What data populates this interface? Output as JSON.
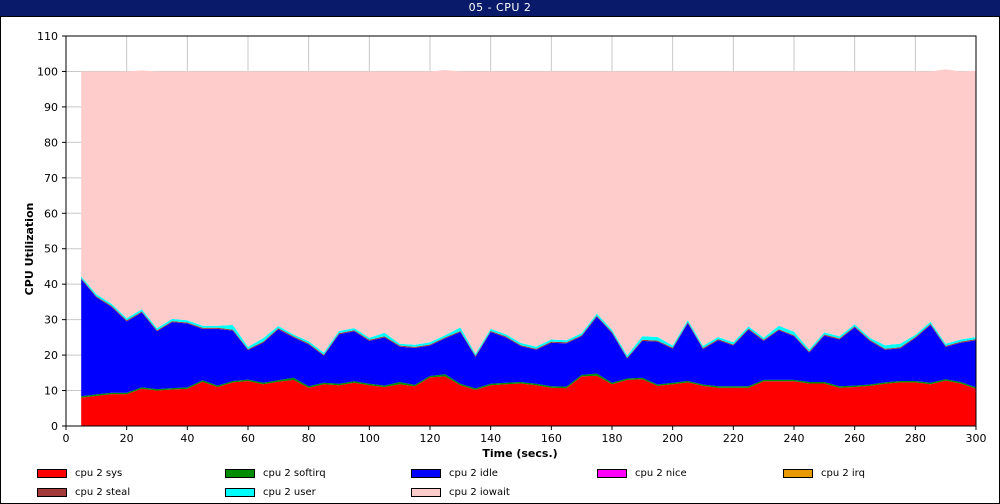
{
  "window": {
    "title": "05 - CPU 2"
  },
  "chart_data": {
    "type": "area",
    "stacked": true,
    "xlabel": "Time (secs.)",
    "ylabel": "CPU Utilization",
    "xlim": [
      0,
      300
    ],
    "ylim": [
      0,
      110
    ],
    "xticks": [
      0,
      20,
      40,
      60,
      80,
      100,
      120,
      140,
      160,
      180,
      200,
      220,
      240,
      260,
      280,
      300
    ],
    "yticks": [
      0,
      10,
      20,
      30,
      40,
      50,
      60,
      70,
      80,
      90,
      100,
      110
    ],
    "grid": true,
    "legend_position": "bottom",
    "x": [
      5,
      10,
      15,
      20,
      25,
      30,
      35,
      40,
      45,
      50,
      55,
      60,
      65,
      70,
      75,
      80,
      85,
      90,
      95,
      100,
      105,
      110,
      115,
      120,
      125,
      130,
      135,
      140,
      145,
      150,
      155,
      160,
      165,
      170,
      175,
      180,
      185,
      190,
      195,
      200,
      205,
      210,
      215,
      220,
      225,
      230,
      235,
      240,
      245,
      250,
      255,
      260,
      265,
      270,
      275,
      280,
      285,
      290,
      295,
      300
    ],
    "series": [
      {
        "name": "cpu 2 sys",
        "color": "#ff0000",
        "values": [
          8.0,
          8.5,
          9.0,
          9.0,
          10.5,
          10.0,
          10.3,
          10.5,
          12.5,
          11.0,
          12.3,
          12.7,
          11.8,
          12.5,
          13.0,
          10.8,
          11.8,
          11.5,
          12.2,
          11.5,
          11.0,
          11.8,
          11.2,
          13.7,
          14.0,
          11.5,
          10.2,
          11.5,
          11.8,
          12.0,
          11.5,
          10.8,
          10.7,
          14.0,
          14.2,
          11.8,
          13.0,
          13.2,
          11.3,
          11.8,
          12.3,
          11.3,
          10.8,
          10.8,
          10.8,
          12.6,
          12.6,
          12.6,
          12.0,
          12.0,
          10.8,
          11.0,
          11.3,
          11.9,
          12.3,
          12.3,
          11.8,
          12.8,
          12.0,
          10.5
        ]
      },
      {
        "name": "cpu 2 softirq",
        "color": "#008c00",
        "values": [
          0.4,
          0.4,
          0.4,
          0.4,
          0.4,
          0.4,
          0.4,
          0.4,
          0.4,
          0.4,
          0.4,
          0.4,
          0.4,
          0.4,
          0.6,
          0.4,
          0.4,
          0.4,
          0.4,
          0.4,
          0.4,
          0.6,
          0.4,
          0.4,
          0.6,
          0.4,
          0.4,
          0.4,
          0.4,
          0.4,
          0.4,
          0.4,
          0.4,
          0.4,
          0.6,
          0.4,
          0.4,
          0.4,
          0.4,
          0.4,
          0.4,
          0.4,
          0.4,
          0.4,
          0.4,
          0.4,
          0.4,
          0.4,
          0.4,
          0.4,
          0.4,
          0.4,
          0.4,
          0.4,
          0.4,
          0.4,
          0.4,
          0.4,
          0.4,
          0.4
        ]
      },
      {
        "name": "cpu 2 idle",
        "color": "#0000ff",
        "values": [
          33.0,
          27.4,
          24.2,
          20.1,
          21.1,
          16.3,
          18.6,
          18.0,
          14.5,
          16.0,
          14.2,
          8.3,
          11.3,
          14.4,
          11.4,
          11.8,
          7.6,
          14.0,
          14.1,
          12.1,
          13.6,
          10.0,
          10.4,
          8.6,
          10.1,
          14.6,
          8.9,
          14.6,
          12.8,
          10.1,
          9.6,
          12.3,
          12.2,
          10.9,
          16.0,
          14.0,
          5.6,
          10.4,
          12.1,
          9.6,
          16.3,
          10.0,
          13.0,
          11.5,
          16.0,
          11.0,
          14.0,
          12.3,
          8.3,
          13.1,
          13.2,
          16.4,
          12.3,
          9.2,
          9.2,
          12.1,
          16.3,
          9.1,
          11.1,
          13.3
        ]
      },
      {
        "name": "cpu 2 nice",
        "color": "#ff00ff",
        "values": [
          0,
          0,
          0,
          0,
          0,
          0,
          0,
          0,
          0,
          0,
          0,
          0,
          0,
          0,
          0,
          0,
          0,
          0,
          0,
          0,
          0,
          0,
          0,
          0,
          0,
          0,
          0,
          0,
          0,
          0,
          0,
          0,
          0,
          0,
          0,
          0,
          0,
          0,
          0,
          0,
          0,
          0,
          0,
          0,
          0,
          0,
          0,
          0,
          0,
          0,
          0,
          0,
          0,
          0,
          0,
          0,
          0,
          0,
          0,
          0
        ]
      },
      {
        "name": "cpu 2 irq",
        "color": "#e89b00",
        "values": [
          0,
          0,
          0,
          0,
          0,
          0,
          0,
          0,
          0,
          0,
          0,
          0,
          0,
          0,
          0,
          0,
          0,
          0,
          0,
          0,
          0,
          0,
          0,
          0,
          0,
          0,
          0,
          0,
          0,
          0,
          0,
          0,
          0,
          0,
          0,
          0,
          0,
          0,
          0,
          0,
          0,
          0,
          0,
          0,
          0,
          0,
          0,
          0,
          0,
          0,
          0,
          0,
          0,
          0,
          0,
          0,
          0,
          0,
          0,
          0
        ]
      },
      {
        "name": "cpu 2 steal",
        "color": "#a33a3a",
        "values": [
          0.3,
          0.3,
          0.3,
          0.3,
          0.3,
          0.3,
          0.3,
          0.3,
          0.3,
          0.3,
          0.3,
          0.3,
          0.3,
          0.3,
          0.3,
          0.3,
          0.3,
          0.3,
          0.3,
          0.3,
          0.3,
          0.3,
          0.3,
          0.3,
          0.3,
          0.3,
          0.3,
          0.3,
          0.3,
          0.3,
          0.3,
          0.3,
          0.3,
          0.3,
          0.3,
          0.3,
          0.3,
          0.3,
          0.3,
          0.3,
          0.3,
          0.3,
          0.3,
          0.3,
          0.3,
          0.3,
          0.3,
          0.3,
          0.3,
          0.3,
          0.3,
          0.3,
          0.3,
          0.3,
          0.3,
          0.3,
          0.3,
          0.3,
          0.3,
          0.3
        ]
      },
      {
        "name": "cpu 2 user",
        "color": "#00ffff",
        "values": [
          0.5,
          0.6,
          0.6,
          0.6,
          0.6,
          0.6,
          0.6,
          0.6,
          0.6,
          0.6,
          1.3,
          0.6,
          1.0,
          0.6,
          0.5,
          0.6,
          0.6,
          0.6,
          0.6,
          0.6,
          1.0,
          0.5,
          0.6,
          0.6,
          0.6,
          1.0,
          0.6,
          0.6,
          0.6,
          0.6,
          0.6,
          0.6,
          0.6,
          0.6,
          0.6,
          0.6,
          0.6,
          1.0,
          1.0,
          0.6,
          0.6,
          0.6,
          0.6,
          0.6,
          0.6,
          0.6,
          1.0,
          1.0,
          0.6,
          0.6,
          0.6,
          0.6,
          0.6,
          1.0,
          1.0,
          0.6,
          0.6,
          0.6,
          0.6,
          0.6
        ]
      },
      {
        "name": "cpu 2 iowait",
        "color": "#ffcccc",
        "values": [
          57.8,
          62.8,
          65.5,
          69.6,
          67.4,
          72.4,
          69.8,
          70.2,
          71.7,
          71.7,
          71.5,
          77.7,
          75.2,
          71.8,
          74.2,
          76.1,
          79.3,
          73.2,
          72.4,
          75.1,
          73.7,
          76.8,
          77.1,
          76.4,
          74.8,
          72.2,
          79.6,
          72.6,
          74.1,
          76.6,
          77.6,
          75.6,
          75.8,
          73.8,
          68.3,
          72.9,
          80.1,
          74.7,
          74.9,
          77.3,
          70.1,
          77.4,
          74.9,
          76.4,
          71.9,
          75.1,
          71.7,
          73.4,
          78.4,
          73.6,
          74.7,
          71.3,
          75.1,
          77.2,
          76.8,
          74.3,
          70.6,
          77.4,
          75.6,
          75.1
        ]
      }
    ]
  }
}
